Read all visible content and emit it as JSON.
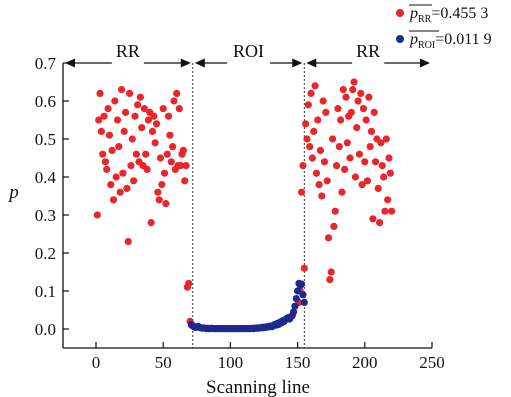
{
  "chart_data": {
    "type": "scatter",
    "xlabel": "Scanning line",
    "ylabel": "p",
    "xlim": [
      -25,
      250
    ],
    "ylim": [
      -0.03,
      0.7
    ],
    "xticks": [
      "0",
      "50",
      "100",
      "150",
      "200",
      "250"
    ],
    "yticks": [
      "0.0",
      "0.1",
      "0.2",
      "0.3",
      "0.4",
      "0.5",
      "0.6",
      "0.7"
    ],
    "xtick_values": [
      0,
      50,
      100,
      150,
      200,
      250
    ],
    "ytick_values": [
      0.0,
      0.1,
      0.2,
      0.3,
      0.4,
      0.5,
      0.6,
      0.7
    ],
    "regions": [
      {
        "label": "RR",
        "from": -25,
        "to": 72
      },
      {
        "label": "ROI",
        "from": 72,
        "to": 155
      },
      {
        "label": "RR",
        "from": 155,
        "to": 250
      }
    ],
    "boundaries": [
      72,
      155
    ],
    "legend": [
      {
        "main": "p",
        "sub": "RR",
        "value": "=0.455 3",
        "color": "#e8262b"
      },
      {
        "main": "p",
        "sub": "ROI",
        "value": "=0.011 9",
        "color": "#1c2a8e"
      }
    ],
    "series": [
      {
        "name": "RR",
        "color": "#e8262b",
        "points": [
          [
            1,
            0.3
          ],
          [
            2,
            0.55
          ],
          [
            3,
            0.62
          ],
          [
            4,
            0.52
          ],
          [
            5,
            0.46
          ],
          [
            6,
            0.56
          ],
          [
            7,
            0.44
          ],
          [
            8,
            0.42
          ],
          [
            9,
            0.58
          ],
          [
            10,
            0.51
          ],
          [
            11,
            0.38
          ],
          [
            12,
            0.47
          ],
          [
            13,
            0.34
          ],
          [
            14,
            0.6
          ],
          [
            15,
            0.4
          ],
          [
            16,
            0.55
          ],
          [
            17,
            0.48
          ],
          [
            18,
            0.36
          ],
          [
            19,
            0.63
          ],
          [
            20,
            0.41
          ],
          [
            21,
            0.52
          ],
          [
            22,
            0.57
          ],
          [
            23,
            0.37
          ],
          [
            24,
            0.23
          ],
          [
            25,
            0.62
          ],
          [
            26,
            0.43
          ],
          [
            27,
            0.5
          ],
          [
            28,
            0.39
          ],
          [
            29,
            0.56
          ],
          [
            30,
            0.46
          ],
          [
            31,
            0.59
          ],
          [
            32,
            0.44
          ],
          [
            33,
            0.61
          ],
          [
            34,
            0.53
          ],
          [
            35,
            0.43
          ],
          [
            36,
            0.58
          ],
          [
            37,
            0.46
          ],
          [
            38,
            0.42
          ],
          [
            39,
            0.55
          ],
          [
            40,
            0.57
          ],
          [
            41,
            0.28
          ],
          [
            42,
            0.52
          ],
          [
            43,
            0.56
          ],
          [
            44,
            0.49
          ],
          [
            45,
            0.54
          ],
          [
            46,
            0.36
          ],
          [
            47,
            0.34
          ],
          [
            48,
            0.45
          ],
          [
            49,
            0.38
          ],
          [
            50,
            0.58
          ],
          [
            51,
            0.41
          ],
          [
            52,
            0.33
          ],
          [
            53,
            0.46
          ],
          [
            54,
            0.56
          ],
          [
            55,
            0.51
          ],
          [
            56,
            0.44
          ],
          [
            57,
            0.48
          ],
          [
            58,
            0.6
          ],
          [
            59,
            0.42
          ],
          [
            60,
            0.62
          ],
          [
            61,
            0.43
          ],
          [
            62,
            0.58
          ],
          [
            63,
            0.43
          ],
          [
            64,
            0.46
          ],
          [
            65,
            0.47
          ],
          [
            66,
            0.39
          ],
          [
            67,
            0.43
          ],
          [
            68,
            0.11
          ],
          [
            69,
            0.12
          ],
          [
            70,
            0.02
          ],
          [
            71,
            0.01
          ],
          [
            151,
            0.07
          ],
          [
            152,
            0.1
          ],
          [
            153,
            0.36
          ],
          [
            154,
            0.43
          ],
          [
            155,
            0.16
          ],
          [
            156,
            0.54
          ],
          [
            157,
            0.5
          ],
          [
            158,
            0.59
          ],
          [
            159,
            0.48
          ],
          [
            160,
            0.62
          ],
          [
            161,
            0.45
          ],
          [
            162,
            0.52
          ],
          [
            163,
            0.64
          ],
          [
            164,
            0.41
          ],
          [
            165,
            0.55
          ],
          [
            166,
            0.38
          ],
          [
            167,
            0.47
          ],
          [
            168,
            0.35
          ],
          [
            169,
            0.6
          ],
          [
            170,
            0.44
          ],
          [
            171,
            0.57
          ],
          [
            172,
            0.39
          ],
          [
            173,
            0.24
          ],
          [
            174,
            0.13
          ],
          [
            175,
            0.15
          ],
          [
            176,
            0.5
          ],
          [
            177,
            0.27
          ],
          [
            178,
            0.31
          ],
          [
            179,
            0.43
          ],
          [
            180,
            0.58
          ],
          [
            181,
            0.48
          ],
          [
            182,
            0.55
          ],
          [
            183,
            0.36
          ],
          [
            184,
            0.63
          ],
          [
            185,
            0.42
          ],
          [
            186,
            0.61
          ],
          [
            187,
            0.49
          ],
          [
            188,
            0.56
          ],
          [
            189,
            0.45
          ],
          [
            190,
            0.57
          ],
          [
            191,
            0.63
          ],
          [
            192,
            0.65
          ],
          [
            193,
            0.4
          ],
          [
            194,
            0.53
          ],
          [
            195,
            0.6
          ],
          [
            196,
            0.46
          ],
          [
            197,
            0.62
          ],
          [
            198,
            0.38
          ],
          [
            199,
            0.58
          ],
          [
            200,
            0.44
          ],
          [
            201,
            0.55
          ],
          [
            202,
            0.39
          ],
          [
            203,
            0.61
          ],
          [
            204,
            0.48
          ],
          [
            205,
            0.52
          ],
          [
            206,
            0.29
          ],
          [
            207,
            0.57
          ],
          [
            208,
            0.44
          ],
          [
            209,
            0.5
          ],
          [
            210,
            0.37
          ],
          [
            211,
            0.28
          ],
          [
            212,
            0.49
          ],
          [
            213,
            0.43
          ],
          [
            214,
            0.4
          ],
          [
            215,
            0.31
          ],
          [
            216,
            0.5
          ],
          [
            217,
            0.34
          ],
          [
            218,
            0.45
          ],
          [
            219,
            0.41
          ],
          [
            220,
            0.31
          ]
        ]
      },
      {
        "name": "ROI",
        "color": "#1c2a8e",
        "points": [
          [
            71,
            0.012
          ],
          [
            72,
            0.008
          ],
          [
            73,
            0.006
          ],
          [
            74,
            0.004
          ],
          [
            75,
            0.006
          ],
          [
            76,
            0.007
          ],
          [
            77,
            0.004
          ],
          [
            78,
            0.003
          ],
          [
            79,
            0.002
          ],
          [
            80,
            0.003
          ],
          [
            81,
            0.002
          ],
          [
            82,
            0.001
          ],
          [
            83,
            0.002
          ],
          [
            84,
            0.001
          ],
          [
            85,
            0.001
          ],
          [
            86,
            0.002
          ],
          [
            87,
            0.001
          ],
          [
            88,
            0.001
          ],
          [
            89,
            0.001
          ],
          [
            90,
            0.001
          ],
          [
            91,
            0.001
          ],
          [
            92,
            0.001
          ],
          [
            93,
            0.001
          ],
          [
            94,
            0.001
          ],
          [
            95,
            0.001
          ],
          [
            96,
            0.001
          ],
          [
            97,
            0.001
          ],
          [
            98,
            0.001
          ],
          [
            99,
            0.001
          ],
          [
            100,
            0.001
          ],
          [
            101,
            0.001
          ],
          [
            102,
            0.001
          ],
          [
            103,
            0.001
          ],
          [
            104,
            0.001
          ],
          [
            105,
            0.001
          ],
          [
            106,
            0.001
          ],
          [
            107,
            0.001
          ],
          [
            108,
            0.001
          ],
          [
            109,
            0.001
          ],
          [
            110,
            0.001
          ],
          [
            111,
            0.001
          ],
          [
            112,
            0.001
          ],
          [
            113,
            0.001
          ],
          [
            114,
            0.001
          ],
          [
            115,
            0.001
          ],
          [
            116,
            0.002
          ],
          [
            117,
            0.001
          ],
          [
            118,
            0.002
          ],
          [
            119,
            0.002
          ],
          [
            120,
            0.003
          ],
          [
            121,
            0.002
          ],
          [
            122,
            0.003
          ],
          [
            123,
            0.004
          ],
          [
            124,
            0.003
          ],
          [
            125,
            0.005
          ],
          [
            126,
            0.004
          ],
          [
            127,
            0.006
          ],
          [
            128,
            0.005
          ],
          [
            129,
            0.007
          ],
          [
            130,
            0.008
          ],
          [
            131,
            0.006
          ],
          [
            132,
            0.009
          ],
          [
            133,
            0.012
          ],
          [
            134,
            0.01
          ],
          [
            135,
            0.015
          ],
          [
            136,
            0.012
          ],
          [
            137,
            0.018
          ],
          [
            138,
            0.016
          ],
          [
            139,
            0.022
          ],
          [
            140,
            0.02
          ],
          [
            141,
            0.025
          ],
          [
            142,
            0.028
          ],
          [
            143,
            0.03
          ],
          [
            144,
            0.026
          ],
          [
            145,
            0.032
          ],
          [
            146,
            0.035
          ],
          [
            147,
            0.045
          ],
          [
            148,
            0.06
          ],
          [
            149,
            0.08
          ],
          [
            150,
            0.1
          ],
          [
            151,
            0.12
          ],
          [
            152,
            0.115
          ],
          [
            153,
            0.118
          ],
          [
            154,
            0.09
          ],
          [
            155,
            0.07
          ]
        ]
      }
    ]
  }
}
